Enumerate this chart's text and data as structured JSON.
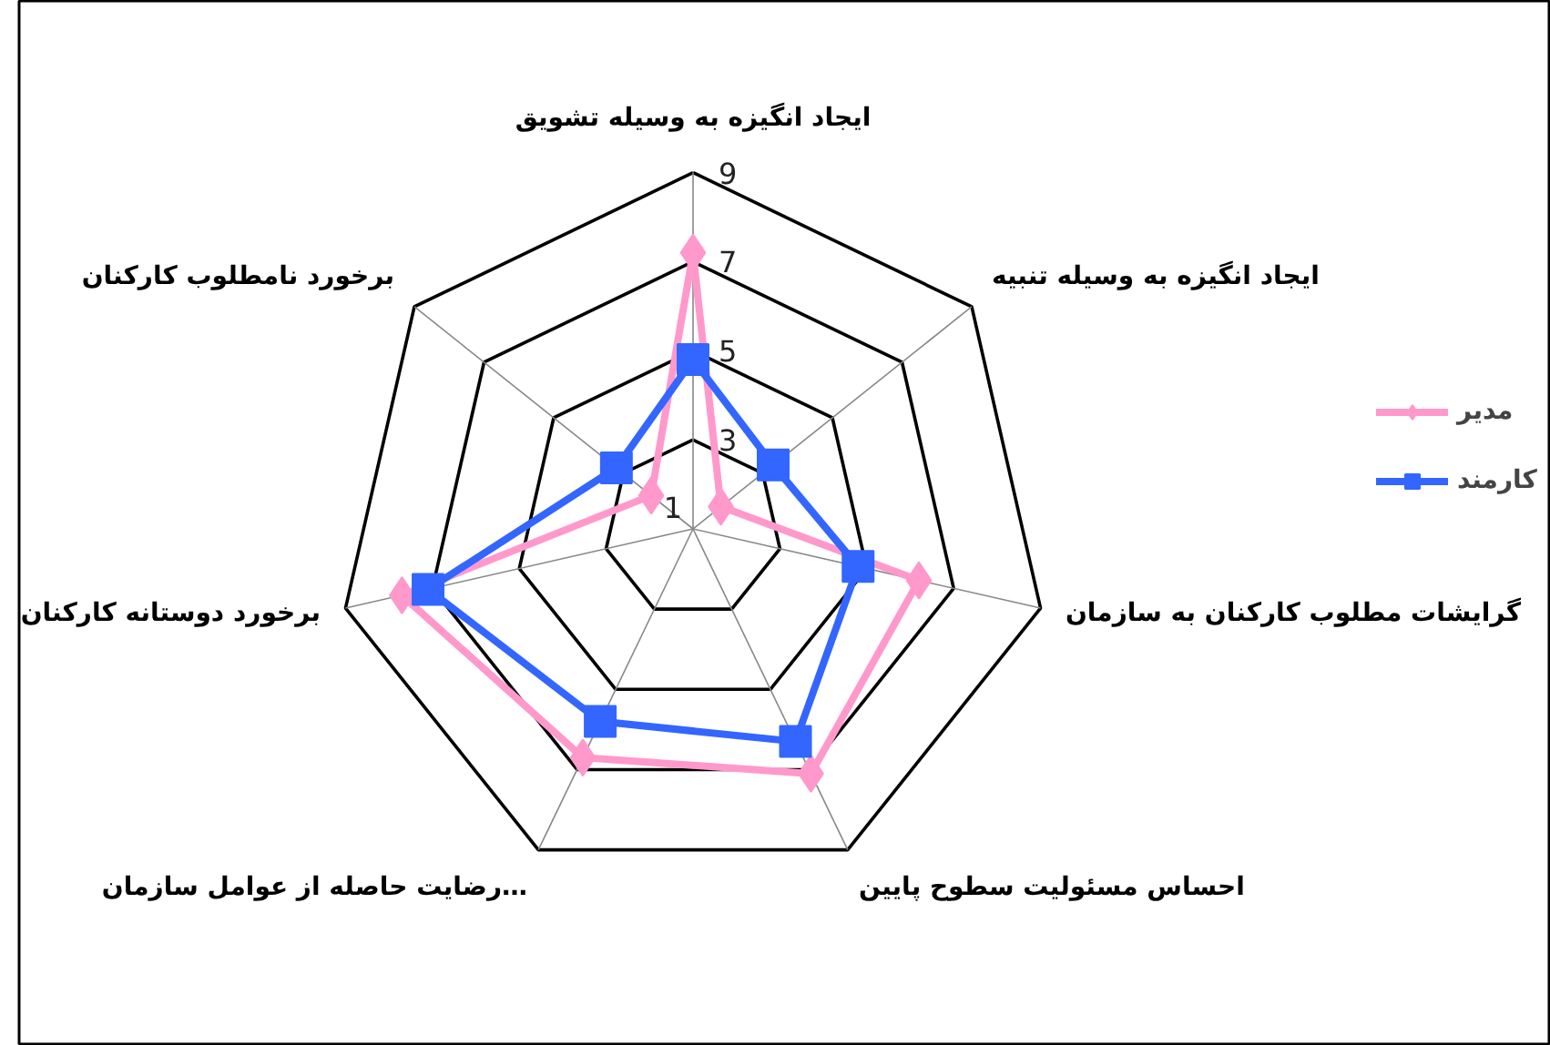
{
  "chart_data": {
    "type": "radar",
    "categories": [
      "ایجاد انگیزه به وسیله تشویق",
      "ایجاد انگیزه به وسیله تنبیه",
      "گرایشات مطلوب کارکنان به سازمان",
      "احساس مسئولیت سطوح پایین",
      "رضایت حاصله از عوامل سازمان…",
      "برخورد دوستانه کارکنان",
      "برخورد نامطلوب کارکنان"
    ],
    "series": [
      {
        "name": "مدیر",
        "color": "#ff99cc",
        "marker": "diamond",
        "values": [
          7.2,
          1.8,
          6.2,
          7.1,
          6.7,
          7.7,
          2.2
        ]
      },
      {
        "name": "کارمند",
        "color": "#3366ff",
        "marker": "square",
        "values": [
          4.8,
          3.3,
          4.8,
          6.3,
          5.8,
          7.1,
          3.2
        ]
      }
    ],
    "ylim": [
      1,
      9
    ],
    "yticks": [
      1,
      3,
      5,
      7,
      9
    ],
    "grid": true,
    "legend": "right",
    "line_style": "solid"
  }
}
